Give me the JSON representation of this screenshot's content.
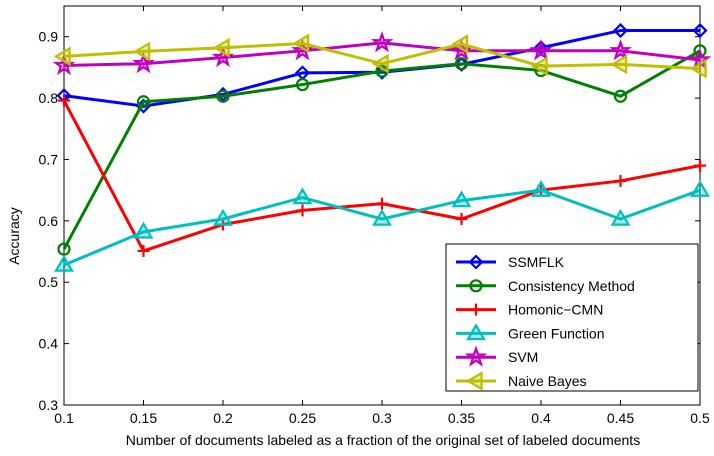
{
  "chart_data": {
    "type": "line",
    "title": "",
    "xlabel": "Number of documents labeled as a fraction of the original set of labeled documents",
    "ylabel": "Accuracy",
    "x": [
      0.1,
      0.15,
      0.2,
      0.25,
      0.3,
      0.35,
      0.4,
      0.45,
      0.5
    ],
    "x_tick_labels": [
      "0.1",
      "0.15",
      "0.2",
      "0.25",
      "0.3",
      "0.35",
      "0.4",
      "0.45",
      "0.5"
    ],
    "y_ticks": [
      0.3,
      0.4,
      0.5,
      0.6,
      0.7,
      0.8,
      0.9
    ],
    "y_tick_labels": [
      "0.3",
      "0.4",
      "0.5",
      "0.6",
      "0.7",
      "0.8",
      "0.9"
    ],
    "xlim": [
      0.1,
      0.5
    ],
    "ylim": [
      0.3,
      0.95
    ],
    "grid": false,
    "legend_position": "bottom-right",
    "series": [
      {
        "name": "SSMFLK",
        "color": "#0000ff",
        "marker": "diamond",
        "values": [
          0.804,
          0.787,
          0.806,
          0.841,
          0.842,
          0.855,
          0.882,
          0.91,
          0.91
        ]
      },
      {
        "name": "Consistency Method",
        "color": "#008000",
        "marker": "circle",
        "values": [
          0.554,
          0.794,
          0.803,
          0.822,
          0.844,
          0.856,
          0.845,
          0.803,
          0.877
        ]
      },
      {
        "name": "Homonic−CMN",
        "color": "#ff0000",
        "marker": "plus",
        "values": [
          0.796,
          0.551,
          0.594,
          0.617,
          0.628,
          0.603,
          0.65,
          0.665,
          0.69
        ]
      },
      {
        "name": "Green Function",
        "color": "#00bfbf",
        "marker": "triangle",
        "values": [
          0.528,
          0.582,
          0.603,
          0.638,
          0.603,
          0.633,
          0.65,
          0.603,
          0.65
        ]
      },
      {
        "name": "SVM",
        "color": "#bf00bf",
        "marker": "star",
        "values": [
          0.853,
          0.856,
          0.866,
          0.877,
          0.89,
          0.877,
          0.877,
          0.877,
          0.862
        ]
      },
      {
        "name": "Naive Bayes",
        "color": "#bfbf00",
        "marker": "triangle-left",
        "values": [
          0.868,
          0.876,
          0.882,
          0.889,
          0.856,
          0.888,
          0.852,
          0.855,
          0.848
        ]
      }
    ]
  }
}
